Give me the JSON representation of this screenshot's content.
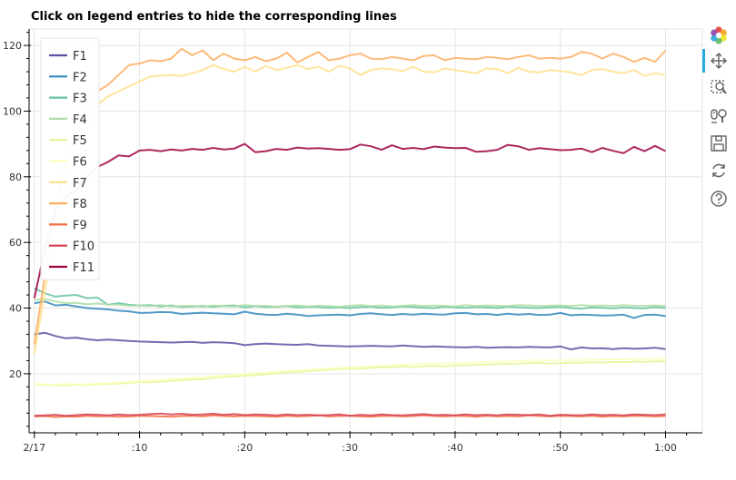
{
  "chart_data": {
    "type": "line",
    "title": "Click on legend entries to hide the corresponding lines",
    "x_tick_labels": [
      "2/17",
      ":10",
      ":20",
      ":30",
      ":40",
      ":50",
      "1:00"
    ],
    "x_tick_values": [
      0,
      10,
      20,
      30,
      40,
      50,
      60
    ],
    "xlim": [
      -0.5,
      63.5
    ],
    "y_ticks": [
      20,
      40,
      60,
      80,
      100,
      120
    ],
    "ylim": [
      2,
      125
    ],
    "grid": true,
    "legend_location": "top-left",
    "x": [
      0,
      1,
      2,
      3,
      4,
      5,
      6,
      7,
      8,
      9,
      10,
      11,
      12,
      13,
      14,
      15,
      16,
      17,
      18,
      19,
      20,
      21,
      22,
      23,
      24,
      25,
      26,
      27,
      28,
      29,
      30,
      31,
      32,
      33,
      34,
      35,
      36,
      37,
      38,
      39,
      40,
      41,
      42,
      43,
      44,
      45,
      46,
      47,
      48,
      49,
      50,
      51,
      52,
      53,
      54,
      55,
      56,
      57,
      58,
      59,
      60
    ],
    "series": [
      {
        "name": "F1",
        "color": "#5e4fa2",
        "values": [
          32,
          32.5,
          31.5,
          30.8,
          31,
          30.5,
          30.2,
          30.4,
          30.2,
          30,
          29.8,
          29.7,
          29.6,
          29.5,
          29.6,
          29.7,
          29.4,
          29.6,
          29.5,
          29.3,
          28.7,
          29,
          29.2,
          29,
          28.9,
          28.8,
          29,
          28.6,
          28.5,
          28.4,
          28.3,
          28.4,
          28.5,
          28.4,
          28.3,
          28.6,
          28.4,
          28.2,
          28.3,
          28.2,
          28.1,
          28,
          28.2,
          27.9,
          28,
          28.1,
          28,
          28.2,
          28.1,
          28,
          28.3,
          27.4,
          28,
          27.7,
          27.8,
          27.5,
          27.8,
          27.6,
          27.7,
          27.9,
          27.5
        ]
      },
      {
        "name": "F2",
        "color": "#3288bd",
        "values": [
          41.5,
          42,
          40.8,
          41,
          40.5,
          40,
          39.8,
          39.6,
          39.2,
          39,
          38.5,
          38.6,
          38.8,
          38.7,
          38.2,
          38.4,
          38.6,
          38.4,
          38.3,
          38.1,
          38.9,
          38.3,
          38,
          37.9,
          38.3,
          38,
          37.6,
          37.8,
          37.9,
          38,
          37.8,
          38.2,
          38.4,
          38.1,
          37.9,
          38.2,
          38,
          38.3,
          38.1,
          38,
          38.4,
          38.5,
          38.1,
          38.2,
          37.9,
          38.3,
          38,
          38.2,
          37.9,
          38,
          38.5,
          37.8,
          38,
          37.9,
          37.7,
          37.8,
          38,
          37,
          37.9,
          38,
          37.6
        ]
      },
      {
        "name": "F3",
        "color": "#66c2a5",
        "values": [
          46,
          44.5,
          43.5,
          43.8,
          44,
          43,
          43.2,
          41,
          41.5,
          41,
          40.8,
          40.9,
          40.5,
          40.8,
          40.3,
          40.5,
          40.6,
          40.4,
          40.7,
          40.8,
          40.2,
          40.6,
          40.3,
          40.4,
          40.6,
          40.2,
          40.4,
          40.3,
          40.1,
          40.2,
          40,
          40.3,
          40.4,
          40.1,
          40.2,
          40.5,
          40.3,
          40.1,
          40,
          40.4,
          40.2,
          40.1,
          40.3,
          40.2,
          40,
          40.4,
          40.2,
          40.1,
          40,
          40.2,
          40.4,
          40,
          39.8,
          40.2,
          40.1,
          39.9,
          40.2,
          40,
          39.9,
          40.3,
          40
        ]
      },
      {
        "name": "F4",
        "color": "#abdda4",
        "values": [
          42.5,
          42.8,
          42,
          41.5,
          41.6,
          41.2,
          41.4,
          41.1,
          41,
          40.7,
          40.8,
          40.6,
          40.9,
          40.5,
          40.6,
          40.7,
          40.4,
          40.8,
          40.6,
          40.5,
          40.9,
          40.6,
          40.7,
          40.4,
          40.6,
          40.8,
          40.5,
          40.7,
          40.6,
          40.4,
          40.7,
          40.9,
          40.6,
          40.8,
          40.5,
          40.7,
          40.9,
          40.6,
          40.8,
          40.7,
          40.5,
          40.9,
          40.6,
          40.8,
          40.7,
          40.6,
          40.9,
          40.8,
          40.6,
          40.7,
          40.8,
          40.6,
          40.9,
          40.7,
          40.8,
          40.6,
          40.9,
          40.7,
          40.6,
          40.8,
          40.7
        ]
      },
      {
        "name": "F5",
        "color": "#e6f598",
        "values": [
          16.8,
          16.6,
          16.5,
          16.4,
          16.7,
          16.5,
          16.8,
          16.9,
          17,
          17.2,
          17.5,
          17.4,
          17.6,
          17.8,
          18,
          18.3,
          18.2,
          18.8,
          19,
          19.2,
          19.4,
          19.6,
          19.8,
          20.2,
          20.4,
          20.6,
          20.8,
          21,
          21.2,
          21.4,
          21.6,
          21.5,
          21.8,
          21.9,
          22,
          22.2,
          22,
          22.3,
          22.4,
          22.2,
          22.5,
          22.6,
          22.7,
          22.8,
          22.9,
          23,
          23.1,
          23.2,
          23.3,
          23.1,
          23.2,
          23.4,
          23.3,
          23.5,
          23.4,
          23.6,
          23.5,
          23.7,
          23.6,
          23.8,
          23.7
        ]
      },
      {
        "name": "F6",
        "color": "#ffffbf",
        "values": [
          17,
          16.8,
          16.6,
          16.9,
          16.7,
          16.8,
          17,
          17.1,
          17.3,
          17.5,
          17.7,
          17.9,
          18.2,
          18.4,
          18.6,
          18.8,
          19,
          19.2,
          19.5,
          19.7,
          20,
          20.2,
          20.4,
          20.6,
          20.8,
          21,
          21.2,
          21.4,
          21.6,
          21.8,
          22,
          22.1,
          22.3,
          22.5,
          22.6,
          22.8,
          22.9,
          23,
          23.1,
          23.2,
          23.3,
          23.4,
          23.5,
          23.6,
          23.7,
          23.8,
          23.9,
          24,
          24,
          24.1,
          24.1,
          24.2,
          24.2,
          24.3,
          24.3,
          24.4,
          24.4,
          24.5,
          24.5,
          24.6,
          24.6
        ]
      },
      {
        "name": "F7",
        "color": "#fee08b",
        "values": [
          26,
          45,
          65,
          78,
          88,
          95,
          102,
          104.5,
          106,
          107.5,
          109,
          110.5,
          110.8,
          111,
          110.7,
          111.5,
          112.5,
          114,
          112.8,
          112,
          113.5,
          112,
          113.8,
          112.5,
          113.2,
          114,
          112.8,
          113.5,
          112,
          113.8,
          113,
          111,
          112.5,
          113,
          112.8,
          112.2,
          113.5,
          112,
          111.8,
          113,
          112.5,
          112,
          111.5,
          113,
          112.8,
          111.5,
          113.2,
          112,
          111.8,
          112.5,
          112.2,
          111.8,
          111,
          112.5,
          112.8,
          112,
          111.5,
          112.5,
          110.8,
          111.5,
          111
        ]
      },
      {
        "name": "F8",
        "color": "#fdae61",
        "values": [
          29,
          50,
          70,
          84,
          93,
          100,
          106,
          108,
          111,
          114,
          114.5,
          115.5,
          115.2,
          116,
          119,
          117,
          118.5,
          115.5,
          117.5,
          116,
          115.5,
          116.5,
          115.2,
          116,
          117.8,
          114.8,
          116.5,
          118,
          115.5,
          116,
          117,
          117.5,
          116,
          115.8,
          116.5,
          116,
          115.5,
          116.8,
          117,
          115.5,
          116.2,
          116,
          115.8,
          116.5,
          116.2,
          115.8,
          116.5,
          117,
          116,
          116.2,
          116,
          116.5,
          118,
          117.5,
          116,
          117.5,
          116.5,
          115,
          116.2,
          115,
          118.5
        ]
      },
      {
        "name": "F9",
        "color": "#f46d43",
        "values": [
          7,
          7.1,
          6.8,
          7,
          6.9,
          7.2,
          7,
          7.1,
          6.9,
          7,
          7.2,
          7.1,
          7,
          6.9,
          7.1,
          7.2,
          7,
          7.3,
          7.1,
          7,
          7.2,
          7.1,
          7,
          6.9,
          7.2,
          7,
          7.1,
          7.3,
          7,
          7.1,
          7.2,
          7,
          6.9,
          7.1,
          7.2,
          7,
          7.1,
          7.3,
          7.1,
          7,
          7.2,
          7.1,
          6.9,
          7.2,
          7,
          7.1,
          7,
          7.3,
          7.1,
          7,
          7.2,
          7.1,
          7,
          7.2,
          6.9,
          7.1,
          7,
          7.2,
          7.1,
          7,
          7.1
        ]
      },
      {
        "name": "F10",
        "color": "#d53e4f",
        "values": [
          7.2,
          7.3,
          7.5,
          7.2,
          7.4,
          7.6,
          7.5,
          7.3,
          7.6,
          7.4,
          7.5,
          7.7,
          7.9,
          7.6,
          7.8,
          7.5,
          7.6,
          7.8,
          7.5,
          7.7,
          7.4,
          7.6,
          7.5,
          7.3,
          7.6,
          7.4,
          7.5,
          7.3,
          7.4,
          7.6,
          7.2,
          7.5,
          7.3,
          7.6,
          7.4,
          7.3,
          7.5,
          7.7,
          7.4,
          7.5,
          7.3,
          7.6,
          7.4,
          7.5,
          7.3,
          7.6,
          7.5,
          7.4,
          7.6,
          7.2,
          7.5,
          7.4,
          7.3,
          7.6,
          7.4,
          7.5,
          7.3,
          7.6,
          7.5,
          7.4,
          7.6
        ]
      },
      {
        "name": "F11",
        "color": "#9e0142",
        "values": [
          43,
          58,
          70,
          74,
          76,
          80,
          83,
          84.5,
          86.5,
          86.2,
          88,
          88.2,
          87.8,
          88.3,
          88,
          88.5,
          88.2,
          88.8,
          88.3,
          88.6,
          90,
          87.5,
          87.8,
          88.5,
          88.2,
          88.9,
          88.6,
          88.7,
          88.5,
          88.2,
          88.4,
          89.8,
          89.3,
          88.2,
          89.6,
          88.5,
          88.8,
          88.4,
          89.2,
          88.9,
          88.7,
          88.8,
          87.6,
          87.8,
          88.2,
          89.7,
          89.3,
          88.2,
          88.7,
          88.4,
          88.1,
          88.2,
          88.6,
          87.5,
          88.8,
          87.9,
          87.2,
          89.1,
          87.8,
          89.4,
          87.8
        ]
      }
    ]
  },
  "toolbar": {
    "tools": [
      {
        "name": "bokeh-logo",
        "icon": "bokeh-logo-icon"
      },
      {
        "name": "pan-tool",
        "icon": "pan-icon"
      },
      {
        "name": "box-zoom-tool",
        "icon": "box-zoom-icon"
      },
      {
        "name": "wheel-zoom-tool",
        "icon": "wheel-zoom-icon"
      },
      {
        "name": "save-tool",
        "icon": "save-icon"
      },
      {
        "name": "reset-tool",
        "icon": "reset-icon"
      },
      {
        "name": "help-tool",
        "icon": "help-icon"
      }
    ]
  }
}
